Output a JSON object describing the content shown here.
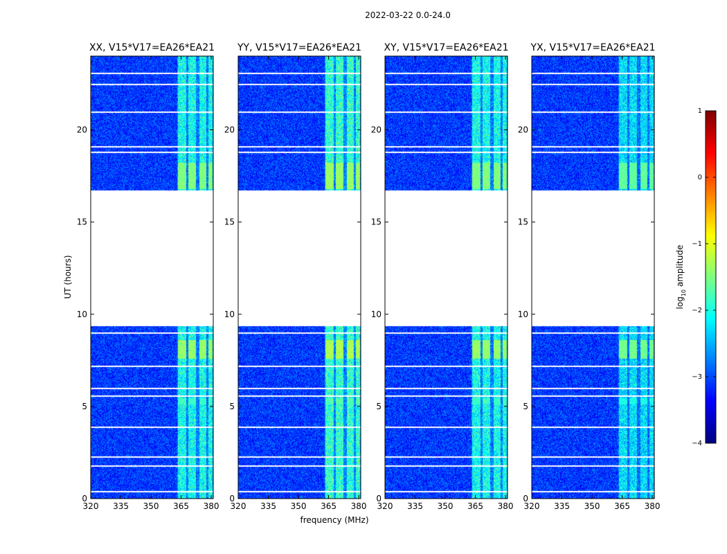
{
  "chart_data": {
    "type": "heatmap",
    "title": "2022-03-22 0.0-24.0",
    "xlabel": "frequency (MHz)",
    "ylabel": "UT (hours)",
    "xlim": [
      320,
      381
    ],
    "ylim": [
      0,
      24
    ],
    "x_ticks": [
      320,
      335,
      350,
      365,
      380
    ],
    "y_ticks": [
      0,
      5,
      10,
      15,
      20
    ],
    "colorbar": {
      "label": "log10 amplitude",
      "label_main": "log",
      "label_sub": "10",
      "label_rest": " amplitude",
      "range": [
        -4,
        1
      ],
      "ticks": [
        -4,
        -3,
        -2,
        -1,
        0,
        1
      ],
      "tick_labels": [
        "−4",
        "−3",
        "−2",
        "−1",
        "0",
        "1"
      ],
      "colormap": "jet"
    },
    "panels": [
      {
        "title": "XX, V15*V17=EA26*EA21",
        "rfi_strength": 1.0
      },
      {
        "title": "YY, V15*V17=EA26*EA21",
        "rfi_strength": 1.15
      },
      {
        "title": "XY, V15*V17=EA26*EA21",
        "rfi_strength": 1.0
      },
      {
        "title": "YX, V15*V17=EA26*EA21",
        "rfi_strength": 0.8
      }
    ],
    "data_gap_hours": [
      9.35,
      16.7
    ],
    "flagged_rows_hours": [
      0.4,
      1.8,
      2.3,
      3.9,
      5.6,
      6.0,
      7.2,
      9.0,
      18.8,
      19.1,
      21.0,
      22.5,
      23.1
    ],
    "rfi_band_mhz": [
      363,
      381
    ],
    "rfi_channels_mhz": [
      [
        363.5,
        367.5
      ],
      [
        368.5,
        372.5
      ],
      [
        374,
        377.5
      ],
      [
        378.5,
        380.5
      ]
    ],
    "rfi_bursts": [
      {
        "ut": [
          7.6,
          8.6
        ],
        "level": -1.4
      },
      {
        "ut": [
          16.8,
          18.2
        ],
        "level": -1.5
      },
      {
        "ut": [
          5.1,
          5.45
        ],
        "level": -1.9
      }
    ],
    "background_level": -3.1
  }
}
